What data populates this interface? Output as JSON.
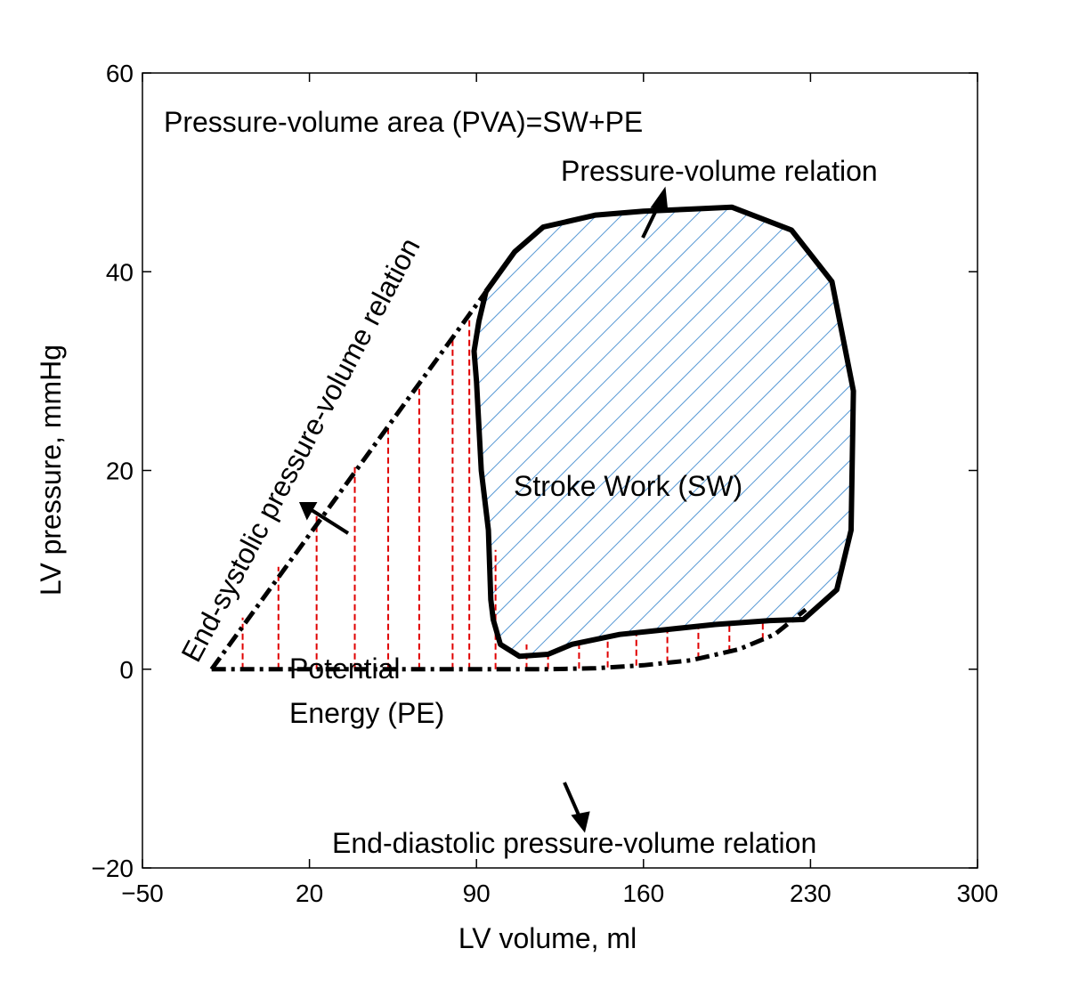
{
  "chart_data": {
    "type": "line",
    "xlabel": "LV volume, ml",
    "ylabel": "LV pressure, mmHg",
    "xlim": [
      -50,
      300
    ],
    "ylim": [
      -20,
      60
    ],
    "xticks": [
      -50,
      20,
      90,
      160,
      230,
      300
    ],
    "yticks": [
      -20,
      0,
      20,
      40,
      60
    ],
    "grid": false,
    "series": [
      {
        "name": "Pressure-volume relation",
        "style": "solid",
        "color": "#000000",
        "points": [
          [
            94,
            38
          ],
          [
            106,
            42
          ],
          [
            118,
            44.5
          ],
          [
            140,
            45.7
          ],
          [
            160,
            46.1
          ],
          [
            180,
            46.3
          ],
          [
            197,
            46.5
          ],
          [
            222,
            44.2
          ],
          [
            239,
            39
          ],
          [
            248,
            28
          ],
          [
            247,
            14
          ],
          [
            241,
            8
          ],
          [
            227,
            5
          ],
          [
            213,
            4.9
          ],
          [
            190,
            4.5
          ],
          [
            170,
            4
          ],
          [
            150,
            3.5
          ],
          [
            130,
            2.5
          ],
          [
            120,
            1.5
          ],
          [
            108,
            1.3
          ],
          [
            100,
            2.5
          ],
          [
            97,
            5
          ],
          [
            96,
            7
          ],
          [
            95,
            14
          ],
          [
            92,
            20
          ],
          [
            90,
            29
          ],
          [
            89,
            32
          ],
          [
            91,
            35
          ],
          [
            94,
            38
          ]
        ]
      },
      {
        "name": "End-systolic pressure-volume relation",
        "style": "dashdot",
        "color": "#000000",
        "points": [
          [
            -21,
            0
          ],
          [
            94,
            38
          ]
        ]
      },
      {
        "name": "End-diastolic pressure-volume relation",
        "style": "dashdot",
        "color": "#000000",
        "points": [
          [
            -21,
            0
          ],
          [
            60,
            0
          ],
          [
            100,
            0
          ],
          [
            120,
            0
          ],
          [
            140,
            0.1
          ],
          [
            160,
            0.4
          ],
          [
            180,
            0.9
          ],
          [
            200,
            2
          ],
          [
            215,
            3.5
          ],
          [
            228,
            6
          ]
        ]
      }
    ],
    "pe_lines_x": [
      -8,
      7,
      23,
      39,
      53,
      66,
      80,
      87,
      98,
      111
    ],
    "pe_lines_top": [
      5.2,
      10.3,
      15.4,
      20.5,
      24.6,
      29.0,
      33.6,
      36,
      12,
      2.5
    ],
    "pe_lines_bottom_right": [
      [
        120,
        1.5
      ],
      [
        133,
        2.6
      ],
      [
        145,
        3.0
      ],
      [
        157,
        3.5
      ],
      [
        170,
        4.0
      ],
      [
        183,
        4.3
      ],
      [
        196,
        4.6
      ],
      [
        210,
        4.8
      ]
    ],
    "hatch_colors": {
      "sw": "#5b9bd5",
      "pe": "#e00000"
    },
    "annotations": [
      "Pressure-volume area (PVA)=SW+PE",
      "Pressure-volume relation",
      "End-systolic pressure-volume relation",
      "Stroke Work (SW)",
      "Potential",
      "Energy (PE)",
      "End-diastolic pressure-volume relation"
    ]
  }
}
